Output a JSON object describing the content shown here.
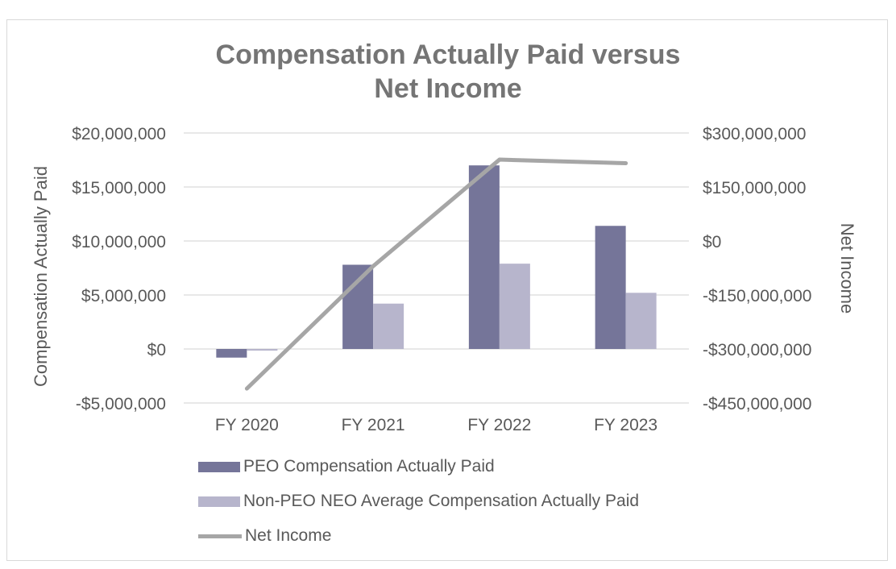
{
  "chart_data": {
    "type": "bar",
    "title_lines": [
      "Compensation Actually Paid versus",
      "Net Income"
    ],
    "categories": [
      "FY 2020",
      "FY 2021",
      "FY 2022",
      "FY 2023"
    ],
    "series": [
      {
        "name": "PEO Compensation Actually Paid",
        "type": "bar",
        "axis": "left",
        "color": "#757599",
        "values": [
          -800000,
          7800000,
          17000000,
          11400000
        ]
      },
      {
        "name": "Non-PEO NEO Average Compensation Actually Paid",
        "type": "bar",
        "axis": "left",
        "color": "#b7b5cc",
        "values": [
          -150000,
          4200000,
          7900000,
          5200000
        ]
      },
      {
        "name": "Net Income",
        "type": "line",
        "axis": "right",
        "color": "#a6a6a6",
        "values": [
          -410000000,
          -70000000,
          226000000,
          216000000
        ]
      }
    ],
    "ylabel": "Compensation Actually Paid",
    "y2label": "Net Income",
    "ylim": [
      -5000000,
      20000000
    ],
    "y2lim": [
      -450000000,
      300000000
    ],
    "yticks": [
      20000000,
      15000000,
      10000000,
      5000000,
      0,
      -5000000
    ],
    "ytick_labels": [
      "$20,000,000",
      "$15,000,000",
      "$10,000,000",
      "$5,000,000",
      "$0",
      "-$5,000,000"
    ],
    "y2ticks": [
      300000000,
      150000000,
      0,
      -150000000,
      -300000000,
      -450000000
    ],
    "y2tick_labels": [
      "$300,000,000",
      "$150,000,000",
      "$0",
      "-$150,000,000",
      "-$300,000,000",
      "-$450,000,000"
    ],
    "grid": true,
    "legend_position": "bottom"
  }
}
